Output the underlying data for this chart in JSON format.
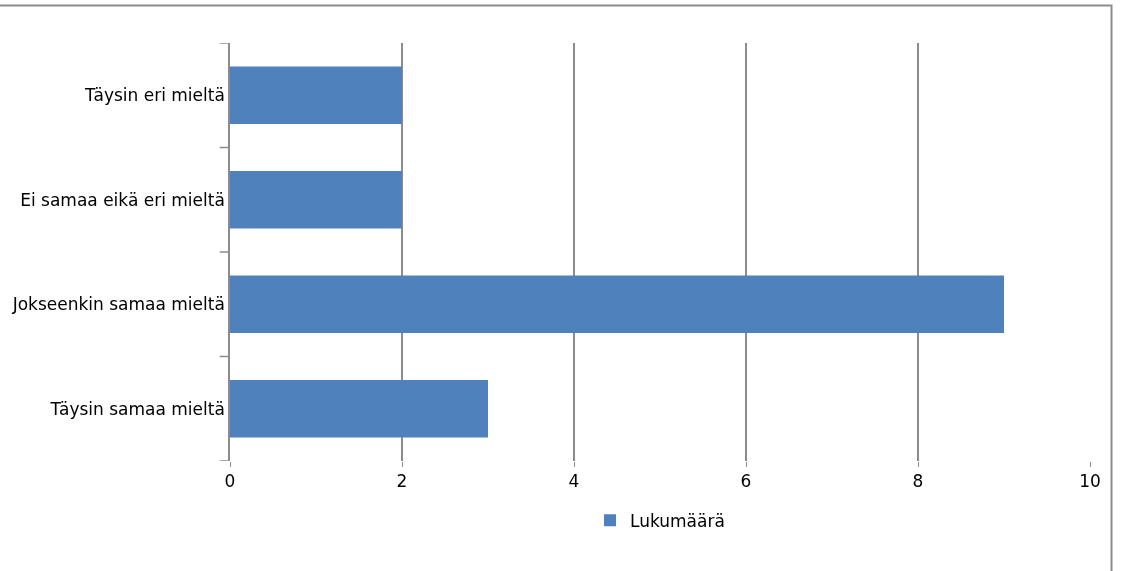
{
  "chart_data": {
    "type": "bar",
    "orientation": "horizontal",
    "categories": [
      "Täysin eri mieltä",
      "Ei samaa eikä eri mieltä",
      "Jokseenkin samaa mieltä",
      "Täysin samaa mieltä"
    ],
    "series": [
      {
        "name": "Lukumäärä",
        "color": "#4f81bd",
        "values": [
          2,
          2,
          9,
          3
        ]
      }
    ],
    "xlim": [
      0,
      10
    ],
    "xticks": [
      0,
      2,
      4,
      6,
      8,
      10
    ],
    "grid": "x",
    "legend": "bottom"
  }
}
